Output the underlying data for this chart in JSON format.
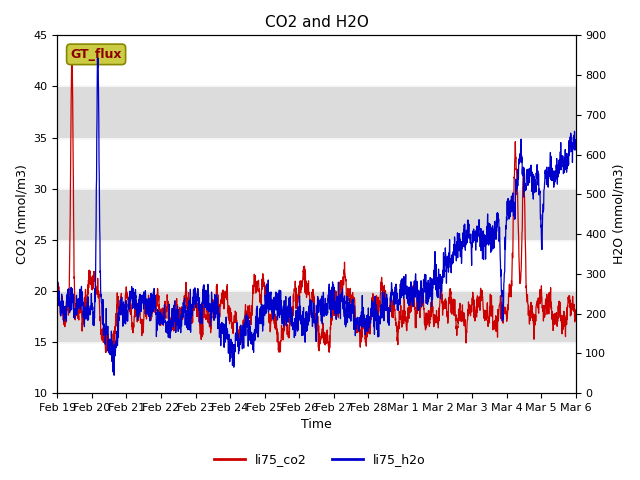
{
  "title": "CO2 and H2O",
  "xlabel": "Time",
  "ylabel_left": "CO2 (mmol/m3)",
  "ylabel_right": "H2O (mmol/m3)",
  "ylim_left": [
    10,
    45
  ],
  "ylim_right": [
    0,
    900
  ],
  "xtick_labels": [
    "Feb 19",
    "Feb 20",
    "Feb 21",
    "Feb 22",
    "Feb 23",
    "Feb 24",
    "Feb 25",
    "Feb 26",
    "Feb 27",
    "Feb 28",
    "Mar 1",
    "Mar 2",
    "Mar 3",
    "Mar 4",
    "Mar 5",
    "Mar 6"
  ],
  "legend_labels": [
    "li75_co2",
    "li75_h2o"
  ],
  "legend_colors": [
    "#cc0000",
    "#0000cc"
  ],
  "gt_flux_label": "GT_flux",
  "gt_flux_bg": "#cccc44",
  "gt_flux_border": "#888800",
  "plot_bg": "#f5f5f5",
  "band_color": "#dcdcdc",
  "co2_color": "#cc0000",
  "h2o_color": "#0000cc",
  "title_fontsize": 11,
  "axis_label_fontsize": 9,
  "tick_fontsize": 8,
  "n_days": 16
}
